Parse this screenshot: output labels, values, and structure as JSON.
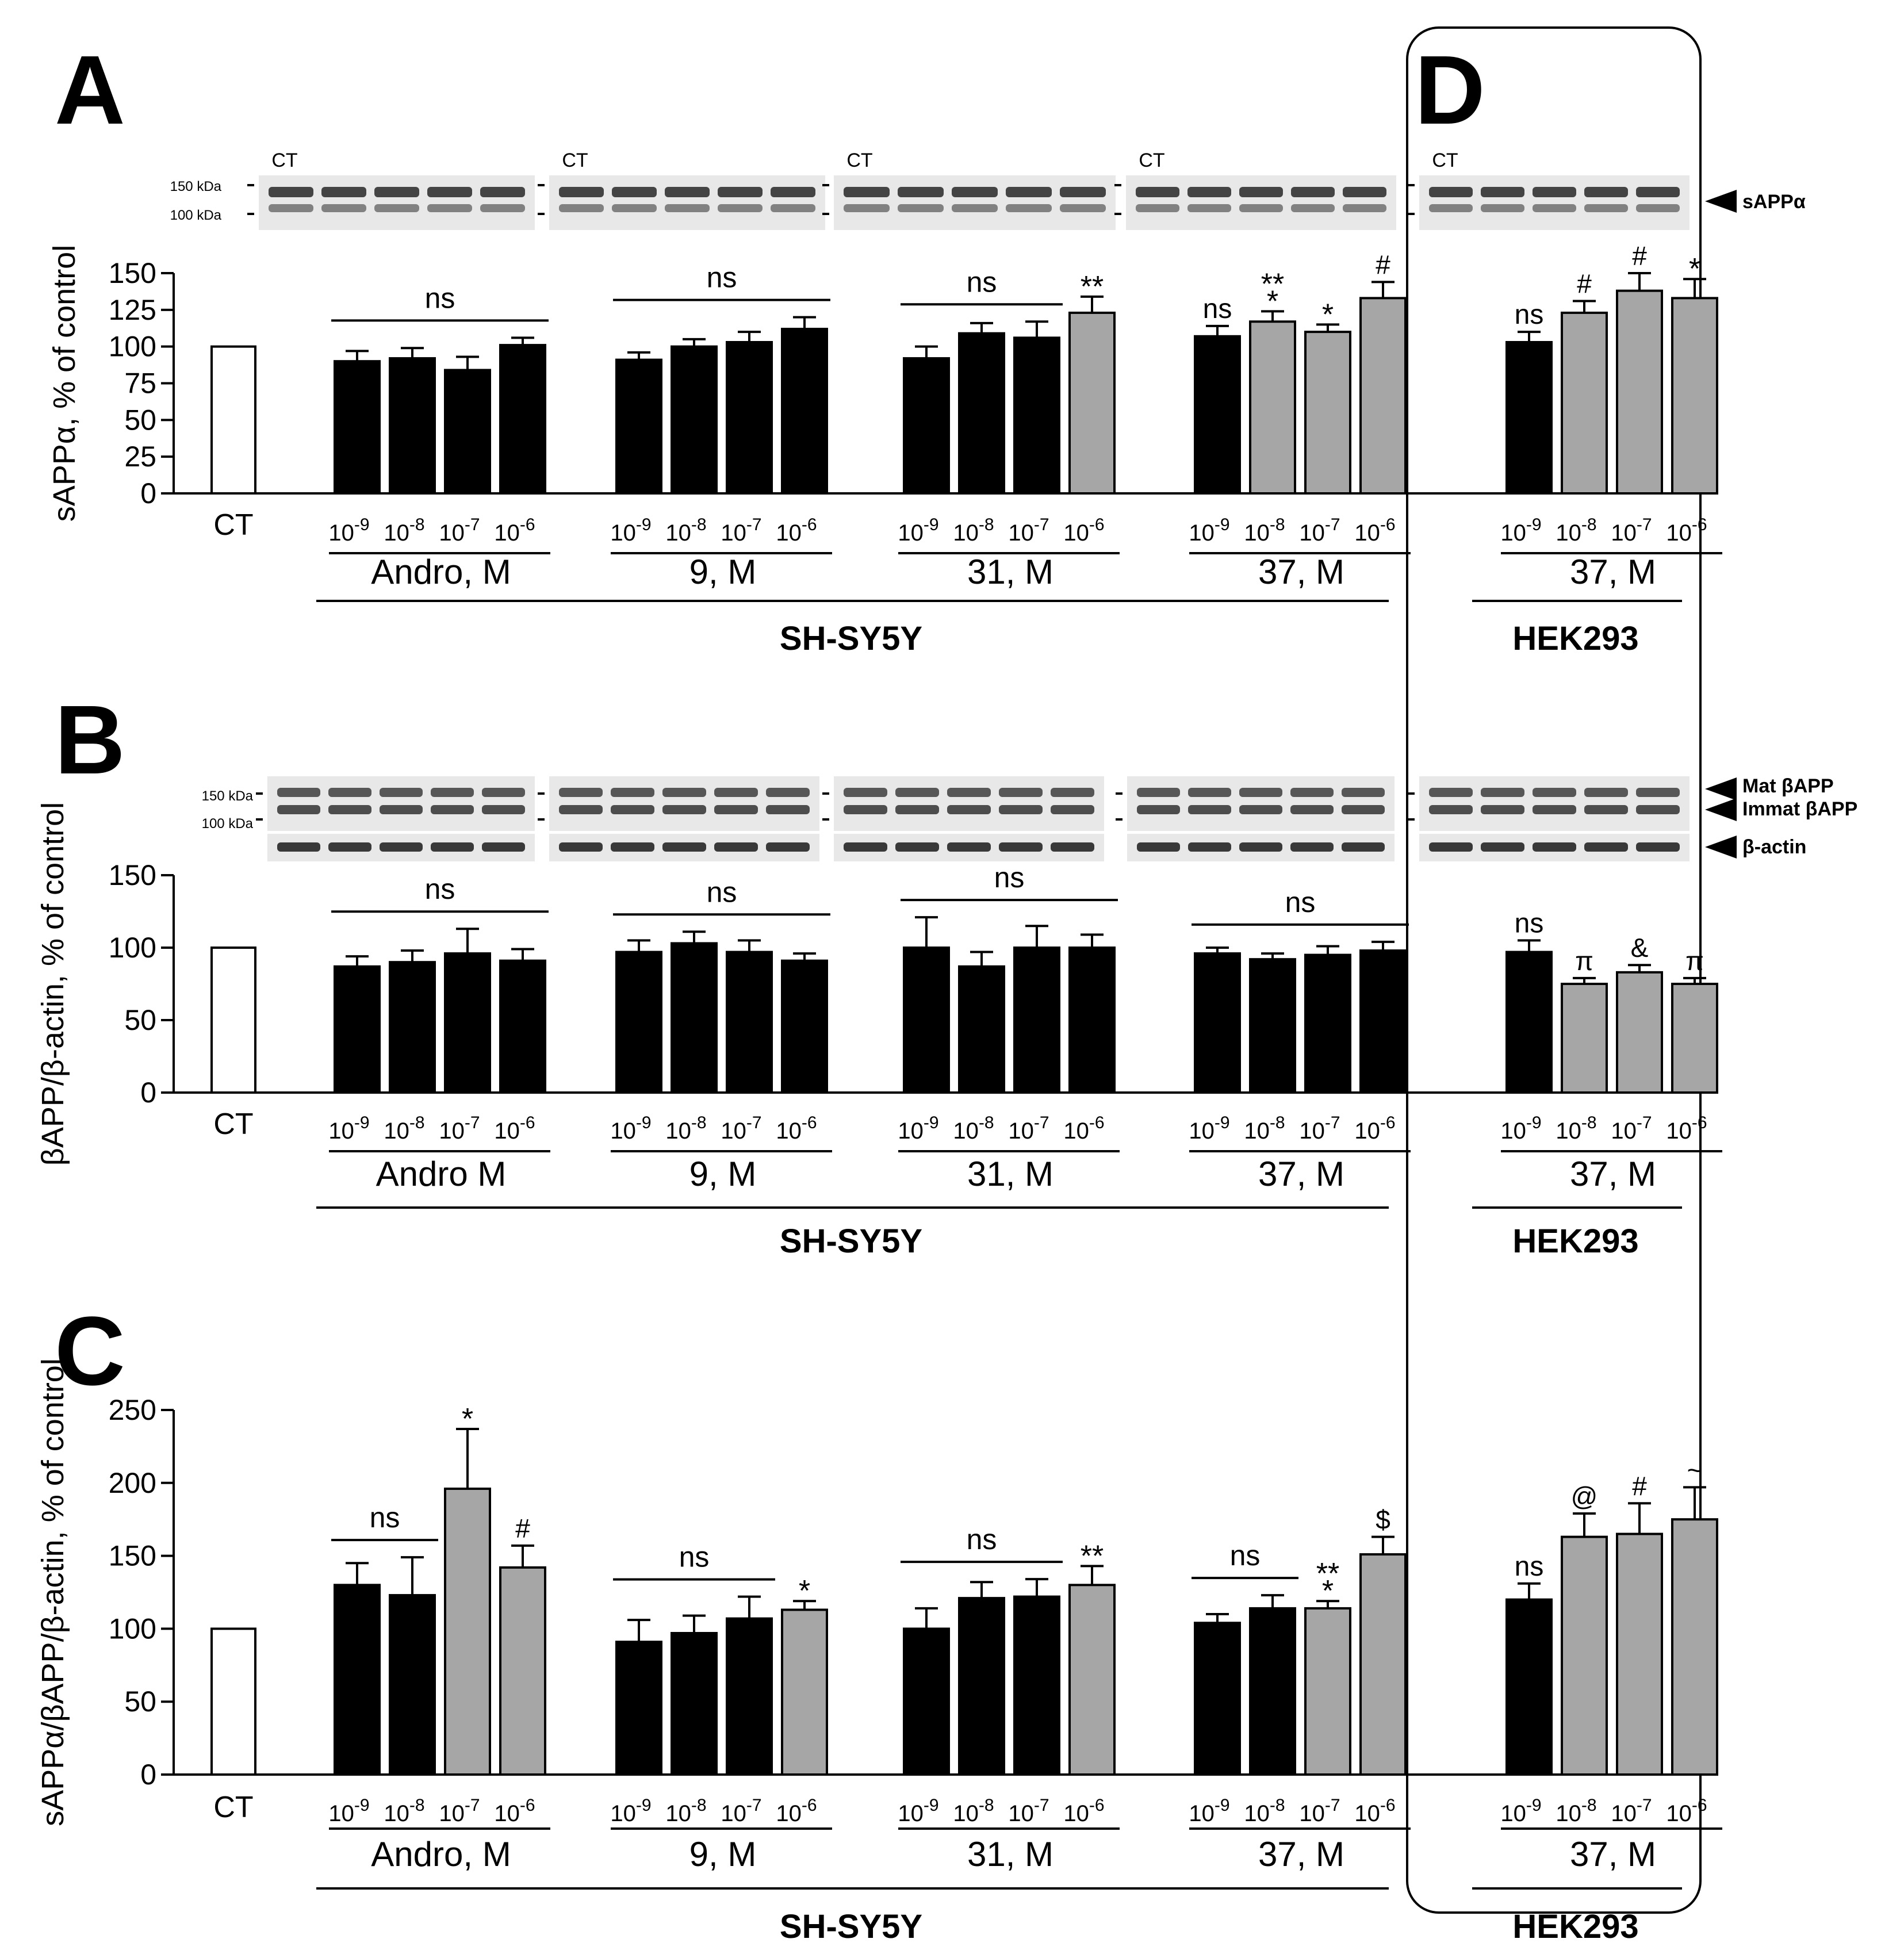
{
  "chart_data": [
    {
      "panel": "A",
      "type": "bar",
      "title": "",
      "ylabel": "sAPPα, % of control",
      "ylim": [
        0,
        150
      ],
      "yticks": [
        0,
        25,
        50,
        75,
        100,
        125,
        150
      ],
      "blot": {
        "ct_label": "CT",
        "size_markers": [
          "150 kDa",
          "100 kDa"
        ],
        "band_labels": [
          "sAPPα"
        ]
      },
      "control": {
        "label": "CT",
        "value": 100
      },
      "groups": [
        {
          "label": "Andro, M",
          "doses": [
            "10-9",
            "10-8",
            "10-7",
            "10-6"
          ],
          "values": [
            90,
            92,
            84,
            101
          ],
          "errors": [
            7,
            7,
            9,
            5
          ],
          "shaded": [
            false,
            false,
            false,
            false
          ],
          "annotations": [
            "",
            "",
            "",
            ""
          ],
          "bracket": {
            "text": "ns",
            "from": 0,
            "to": 3
          }
        },
        {
          "label": "9, M",
          "doses": [
            "10-9",
            "10-8",
            "10-7",
            "10-6"
          ],
          "values": [
            91,
            100,
            103,
            112
          ],
          "errors": [
            5,
            5,
            7,
            8
          ],
          "shaded": [
            false,
            false,
            false,
            false
          ],
          "annotations": [
            "",
            "",
            "",
            ""
          ],
          "bracket": {
            "text": "ns",
            "from": 0,
            "to": 3
          }
        },
        {
          "label": "31, M",
          "doses": [
            "10-9",
            "10-8",
            "10-7",
            "10-6"
          ],
          "values": [
            92,
            109,
            106,
            123
          ],
          "errors": [
            8,
            7,
            11,
            11
          ],
          "shaded": [
            false,
            false,
            false,
            true
          ],
          "annotations": [
            "",
            "",
            "",
            "**"
          ],
          "bracket": {
            "text": "ns",
            "from": 0,
            "to": 2
          }
        },
        {
          "label": "37, M",
          "doses": [
            "10-9",
            "10-8",
            "10-7",
            "10-6"
          ],
          "values": [
            107,
            117,
            110,
            133
          ],
          "errors": [
            7,
            7,
            5,
            11
          ],
          "shaded": [
            false,
            true,
            true,
            true
          ],
          "annotations": [
            "ns",
            "**\n*",
            "*",
            "#"
          ],
          "bracket": null
        },
        {
          "label": "37, M",
          "doses": [
            "10-9",
            "10-8",
            "10-7",
            "10-6"
          ],
          "values": [
            103,
            123,
            138,
            133
          ],
          "errors": [
            7,
            8,
            12,
            13
          ],
          "shaded": [
            false,
            true,
            true,
            true
          ],
          "annotations": [
            "ns",
            "#",
            "#",
            "*"
          ],
          "bracket": null
        }
      ],
      "cell_lines": [
        "SH-SY5Y",
        "HEK293"
      ]
    },
    {
      "panel": "B",
      "type": "bar",
      "title": "",
      "ylabel": "βAPP/β-actin, % of control",
      "ylim": [
        0,
        150
      ],
      "yticks": [
        0,
        50,
        100,
        150
      ],
      "blot": {
        "size_markers": [
          "150 kDa",
          "100 kDa"
        ],
        "band_labels": [
          "Mat βAPP",
          "Immat βAPP",
          "β-actin"
        ]
      },
      "control": {
        "label": "CT",
        "value": 100
      },
      "groups": [
        {
          "label": "Andro M",
          "doses": [
            "10-9",
            "10-8",
            "10-7",
            "10-6"
          ],
          "values": [
            87,
            90,
            96,
            91
          ],
          "errors": [
            7,
            8,
            17,
            8
          ],
          "shaded": [
            false,
            false,
            false,
            false
          ],
          "annotations": [
            "",
            "",
            "",
            ""
          ],
          "bracket": {
            "text": "ns",
            "from": 0,
            "to": 3
          }
        },
        {
          "label": "9, M",
          "doses": [
            "10-9",
            "10-8",
            "10-7",
            "10-6"
          ],
          "values": [
            97,
            103,
            97,
            91
          ],
          "errors": [
            8,
            8,
            8,
            5
          ],
          "shaded": [
            false,
            false,
            false,
            false
          ],
          "annotations": [
            "",
            "",
            "",
            ""
          ],
          "bracket": {
            "text": "ns",
            "from": 0,
            "to": 3
          }
        },
        {
          "label": "31, M",
          "doses": [
            "10-9",
            "10-8",
            "10-7",
            "10-6"
          ],
          "values": [
            100,
            87,
            100,
            100
          ],
          "errors": [
            21,
            10,
            15,
            9
          ],
          "shaded": [
            false,
            false,
            false,
            false
          ],
          "annotations": [
            "",
            "",
            "",
            ""
          ],
          "bracket": {
            "text": "ns",
            "from": 0,
            "to": 3
          }
        },
        {
          "label": "37, M",
          "doses": [
            "10-9",
            "10-8",
            "10-7",
            "10-6"
          ],
          "values": [
            96,
            92,
            95,
            98
          ],
          "errors": [
            4,
            4,
            6,
            6
          ],
          "shaded": [
            false,
            false,
            false,
            false
          ],
          "annotations": [
            "",
            "",
            "",
            ""
          ],
          "bracket": {
            "text": "ns",
            "from": 0,
            "to": 3
          }
        },
        {
          "label": "37, M",
          "doses": [
            "10-9",
            "10-8",
            "10-7",
            "10-6"
          ],
          "values": [
            97,
            75,
            83,
            75
          ],
          "errors": [
            8,
            4,
            5,
            4
          ],
          "shaded": [
            false,
            true,
            true,
            true
          ],
          "annotations": [
            "ns",
            "π",
            "&",
            "π"
          ],
          "bracket": null
        }
      ],
      "cell_lines": [
        "SH-SY5Y",
        "HEK293"
      ]
    },
    {
      "panel": "C",
      "type": "bar",
      "title": "",
      "ylabel": "sAPPα/βAPP/β-actin, % of control",
      "ylim": [
        0,
        250
      ],
      "yticks": [
        0,
        50,
        100,
        150,
        200,
        250
      ],
      "control": {
        "label": "CT",
        "value": 100
      },
      "groups": [
        {
          "label": "Andro, M",
          "doses": [
            "10-9",
            "10-8",
            "10-7",
            "10-6"
          ],
          "values": [
            130,
            123,
            196,
            142
          ],
          "errors": [
            15,
            26,
            41,
            15
          ],
          "shaded": [
            false,
            false,
            true,
            true
          ],
          "annotations": [
            "",
            "",
            "*",
            "#"
          ],
          "bracket": {
            "text": "ns",
            "from": 0,
            "to": 1
          }
        },
        {
          "label": "9, M",
          "doses": [
            "10-9",
            "10-8",
            "10-7",
            "10-6"
          ],
          "values": [
            91,
            97,
            107,
            113
          ],
          "errors": [
            15,
            12,
            15,
            6
          ],
          "shaded": [
            false,
            false,
            false,
            true
          ],
          "annotations": [
            "",
            "",
            "",
            "*"
          ],
          "bracket": {
            "text": "ns",
            "from": 0,
            "to": 2
          }
        },
        {
          "label": "31, M",
          "doses": [
            "10-9",
            "10-8",
            "10-7",
            "10-6"
          ],
          "values": [
            100,
            121,
            122,
            130
          ],
          "errors": [
            14,
            11,
            12,
            13
          ],
          "shaded": [
            false,
            false,
            false,
            true
          ],
          "annotations": [
            "",
            "",
            "",
            "**"
          ],
          "bracket": {
            "text": "ns",
            "from": 0,
            "to": 2
          }
        },
        {
          "label": "37, M",
          "doses": [
            "10-9",
            "10-8",
            "10-7",
            "10-6"
          ],
          "values": [
            104,
            114,
            114,
            151
          ],
          "errors": [
            6,
            9,
            5,
            12
          ],
          "shaded": [
            false,
            false,
            true,
            true
          ],
          "annotations": [
            "",
            "",
            "**\n*",
            "$"
          ],
          "bracket": {
            "text": "ns",
            "from": 0,
            "to": 1
          }
        },
        {
          "label": "37, M",
          "doses": [
            "10-9",
            "10-8",
            "10-7",
            "10-6"
          ],
          "values": [
            120,
            163,
            165,
            175
          ],
          "errors": [
            11,
            16,
            21,
            22
          ],
          "shaded": [
            false,
            true,
            true,
            true
          ],
          "annotations": [
            "ns",
            "@",
            "#",
            "~"
          ],
          "bracket": null
        }
      ],
      "cell_lines": [
        "SH-SY5Y",
        "HEK293"
      ]
    }
  ],
  "panels": {
    "A": {
      "letter": "A"
    },
    "B": {
      "letter": "B"
    },
    "C": {
      "letter": "C"
    },
    "D": {
      "letter": "D"
    }
  }
}
